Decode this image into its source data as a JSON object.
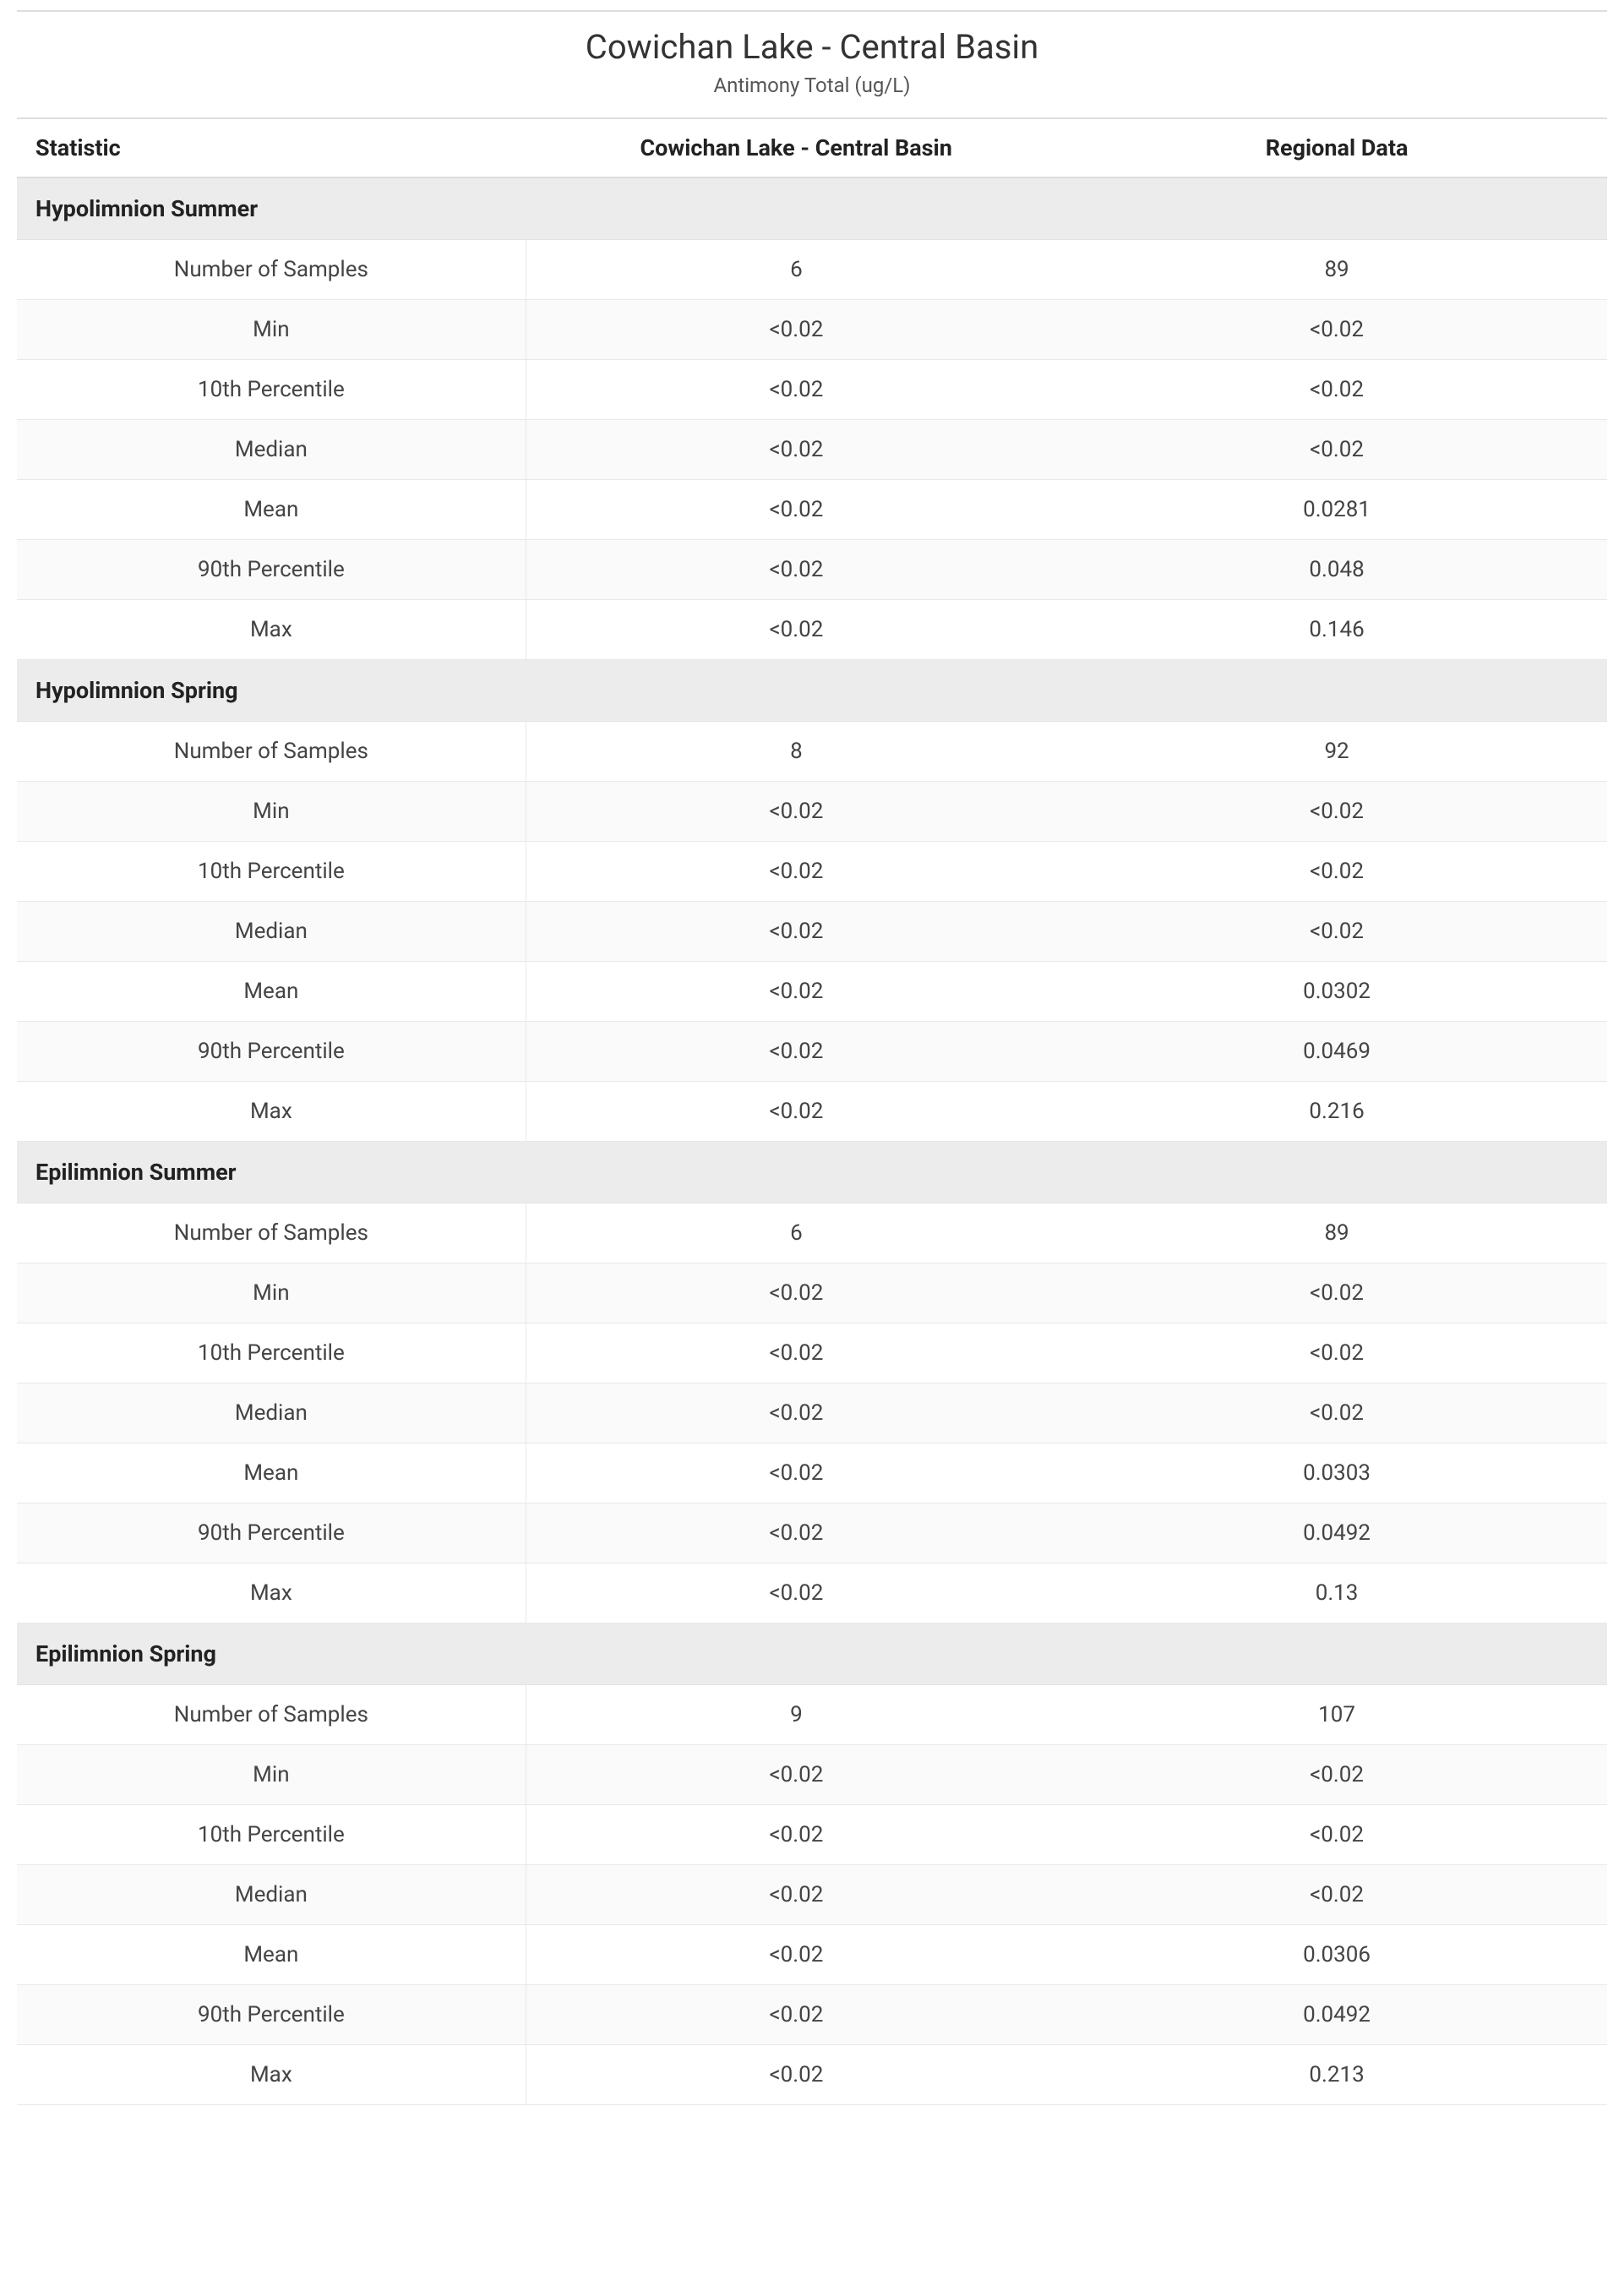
{
  "header": {
    "title": "Cowichan Lake - Central Basin",
    "subtitle": "Antimony Total (ug/L)"
  },
  "columns": {
    "stat": "Statistic",
    "site": "Cowichan Lake - Central Basin",
    "region": "Regional Data"
  },
  "stat_labels": {
    "n": "Number of Samples",
    "min": "Min",
    "p10": "10th Percentile",
    "median": "Median",
    "mean": "Mean",
    "p90": "90th Percentile",
    "max": "Max"
  },
  "sections": [
    {
      "name": "Hypolimnion Summer",
      "rows": [
        {
          "stat": "n",
          "site": "6",
          "region": "89"
        },
        {
          "stat": "min",
          "site": "<0.02",
          "region": "<0.02"
        },
        {
          "stat": "p10",
          "site": "<0.02",
          "region": "<0.02"
        },
        {
          "stat": "median",
          "site": "<0.02",
          "region": "<0.02"
        },
        {
          "stat": "mean",
          "site": "<0.02",
          "region": "0.0281"
        },
        {
          "stat": "p90",
          "site": "<0.02",
          "region": "0.048"
        },
        {
          "stat": "max",
          "site": "<0.02",
          "region": "0.146"
        }
      ]
    },
    {
      "name": "Hypolimnion Spring",
      "rows": [
        {
          "stat": "n",
          "site": "8",
          "region": "92"
        },
        {
          "stat": "min",
          "site": "<0.02",
          "region": "<0.02"
        },
        {
          "stat": "p10",
          "site": "<0.02",
          "region": "<0.02"
        },
        {
          "stat": "median",
          "site": "<0.02",
          "region": "<0.02"
        },
        {
          "stat": "mean",
          "site": "<0.02",
          "region": "0.0302"
        },
        {
          "stat": "p90",
          "site": "<0.02",
          "region": "0.0469"
        },
        {
          "stat": "max",
          "site": "<0.02",
          "region": "0.216"
        }
      ]
    },
    {
      "name": "Epilimnion Summer",
      "rows": [
        {
          "stat": "n",
          "site": "6",
          "region": "89"
        },
        {
          "stat": "min",
          "site": "<0.02",
          "region": "<0.02"
        },
        {
          "stat": "p10",
          "site": "<0.02",
          "region": "<0.02"
        },
        {
          "stat": "median",
          "site": "<0.02",
          "region": "<0.02"
        },
        {
          "stat": "mean",
          "site": "<0.02",
          "region": "0.0303"
        },
        {
          "stat": "p90",
          "site": "<0.02",
          "region": "0.0492"
        },
        {
          "stat": "max",
          "site": "<0.02",
          "region": "0.13"
        }
      ]
    },
    {
      "name": "Epilimnion Spring",
      "rows": [
        {
          "stat": "n",
          "site": "9",
          "region": "107"
        },
        {
          "stat": "min",
          "site": "<0.02",
          "region": "<0.02"
        },
        {
          "stat": "p10",
          "site": "<0.02",
          "region": "<0.02"
        },
        {
          "stat": "median",
          "site": "<0.02",
          "region": "<0.02"
        },
        {
          "stat": "mean",
          "site": "<0.02",
          "region": "0.0306"
        },
        {
          "stat": "p90",
          "site": "<0.02",
          "region": "0.0492"
        },
        {
          "stat": "max",
          "site": "<0.02",
          "region": "0.213"
        }
      ]
    }
  ],
  "styles": {
    "background_color": "#ffffff",
    "text_color": "#333333",
    "section_bg": "#ececec",
    "alt_row_bg": "#fafafa",
    "border_color": "#e8e8e8",
    "header_rule_color": "#dddddd",
    "title_fontsize": 40,
    "subtitle_fontsize": 24,
    "body_fontsize": 26,
    "header_fontsize": 27
  }
}
